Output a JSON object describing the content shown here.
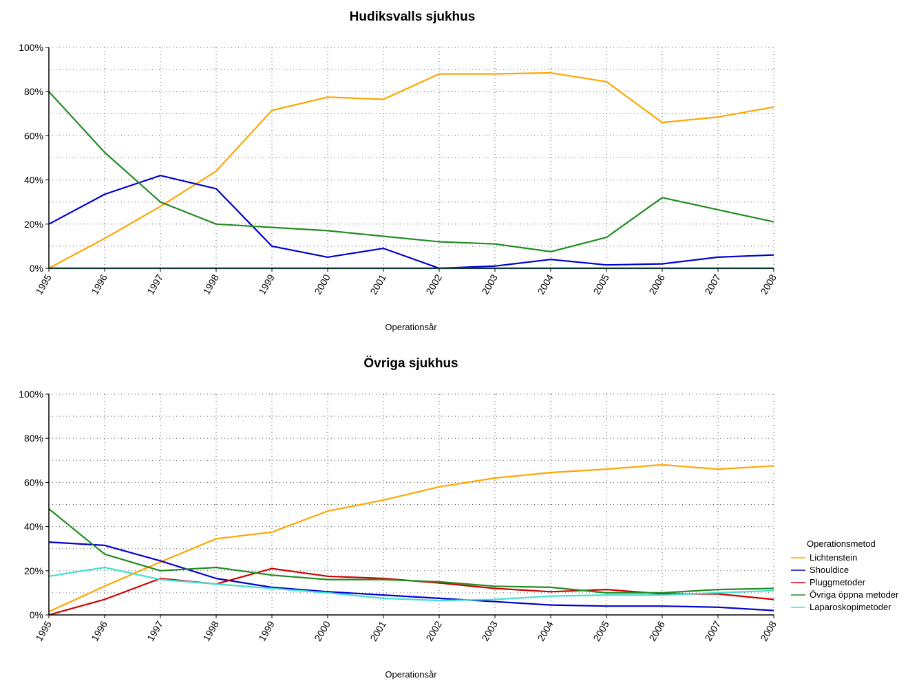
{
  "chart_data": [
    {
      "type": "line",
      "title": "Hudiksvalls sjukhus",
      "xlabel": "Operationsår",
      "ylabel": "",
      "ylim": [
        0,
        100
      ],
      "yticks": [
        "0%",
        "20%",
        "40%",
        "60%",
        "80%",
        "100%"
      ],
      "x": [
        "1995",
        "1996",
        "1997",
        "1998",
        "1999",
        "2000",
        "2001",
        "2002",
        "2003",
        "2004",
        "2005",
        "2006",
        "2007",
        "2008"
      ],
      "grid": true,
      "series": [
        {
          "name": "Lichtenstein",
          "color": "#ffa500",
          "values": [
            0,
            13.5,
            28,
            44,
            71.5,
            77.5,
            76.5,
            88,
            88,
            88.5,
            84.5,
            66,
            68.5,
            73
          ]
        },
        {
          "name": "Shouldice",
          "color": "#0000cd",
          "values": [
            20,
            33.5,
            42,
            36,
            10,
            5,
            9,
            0,
            1,
            4,
            1.5,
            2,
            5,
            6
          ]
        },
        {
          "name": "Pluggmetoder",
          "color": "#cd0000",
          "values": [
            0,
            0,
            0,
            0,
            0,
            0,
            0,
            0,
            0,
            0,
            0,
            0,
            0,
            0
          ]
        },
        {
          "name": "Övriga öppna metoder",
          "color": "#228b22",
          "values": [
            80,
            52.5,
            30,
            20,
            18.5,
            17,
            14.5,
            12,
            11,
            7.5,
            14,
            32,
            26.5,
            21
          ]
        },
        {
          "name": "Laparoskopimetoder",
          "color": "#40e0d0",
          "values": [
            0,
            0,
            0,
            0,
            0,
            0,
            0,
            0,
            0,
            0,
            0,
            0,
            0,
            0
          ]
        }
      ]
    },
    {
      "type": "line",
      "title": "Övriga sjukhus",
      "xlabel": "Operationsår",
      "ylabel": "",
      "ylim": [
        0,
        100
      ],
      "yticks": [
        "0%",
        "20%",
        "40%",
        "60%",
        "80%",
        "100%"
      ],
      "x": [
        "1995",
        "1996",
        "1997",
        "1998",
        "1999",
        "2000",
        "2001",
        "2002",
        "2003",
        "2004",
        "2005",
        "2006",
        "2007",
        "2008"
      ],
      "grid": true,
      "legend_position": "right",
      "legend_title": "Operationsmetod",
      "series": [
        {
          "name": "Lichtenstein",
          "color": "#ffa500",
          "values": [
            1.5,
            13,
            24,
            34.5,
            37.5,
            47,
            52,
            58,
            62,
            64.5,
            66,
            68,
            66,
            67.5
          ]
        },
        {
          "name": "Shouldice",
          "color": "#0000cd",
          "values": [
            33,
            31.5,
            24.5,
            16.5,
            12.5,
            10.5,
            9,
            7.5,
            6,
            4.5,
            4,
            4,
            3.5,
            2
          ]
        },
        {
          "name": "Pluggmetoder",
          "color": "#cd0000",
          "values": [
            0,
            7,
            16.5,
            14,
            21,
            17.5,
            16.5,
            14.5,
            12,
            10.5,
            11.5,
            9.5,
            9.5,
            7
          ]
        },
        {
          "name": "Övriga öppna metoder",
          "color": "#228b22",
          "values": [
            48,
            27.5,
            20,
            21.5,
            18,
            16,
            16,
            15,
            13,
            12.5,
            10,
            10,
            11.5,
            12
          ]
        },
        {
          "name": "Laparoskopimetoder",
          "color": "#40e0d0",
          "values": [
            17.5,
            21.5,
            16,
            14,
            12,
            10,
            7.5,
            6.5,
            7,
            8.5,
            9,
            9,
            10,
            11
          ]
        }
      ]
    }
  ]
}
